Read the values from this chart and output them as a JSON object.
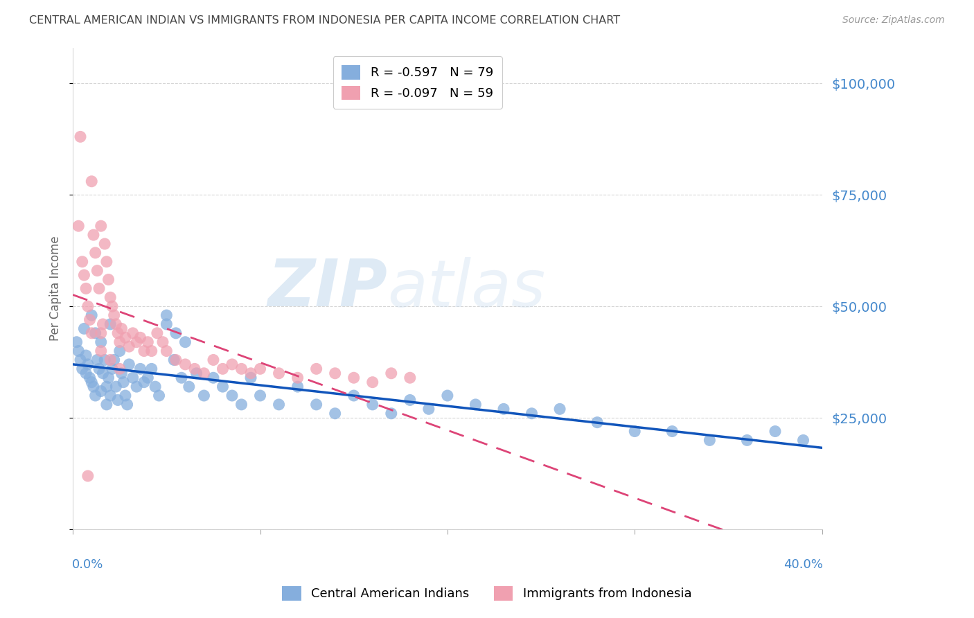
{
  "title": "CENTRAL AMERICAN INDIAN VS IMMIGRANTS FROM INDONESIA PER CAPITA INCOME CORRELATION CHART",
  "source": "Source: ZipAtlas.com",
  "ylabel": "Per Capita Income",
  "y_ticks": [
    0,
    25000,
    50000,
    75000,
    100000
  ],
  "y_tick_labels": [
    "",
    "$25,000",
    "$50,000",
    "$75,000",
    "$100,000"
  ],
  "xlim": [
    0.0,
    0.4
  ],
  "ylim": [
    0,
    108000
  ],
  "legend_label_blue": "R = -0.597   N = 79",
  "legend_label_pink": "R = -0.097   N = 59",
  "bottom_legend_blue": "Central American Indians",
  "bottom_legend_pink": "Immigrants from Indonesia",
  "watermark_zip": "ZIP",
  "watermark_atlas": "atlas",
  "blue_color": "#85AEDD",
  "pink_color": "#F0A0B0",
  "line_blue": "#1155BB",
  "line_pink": "#DD4477",
  "tick_color": "#4488CC",
  "title_color": "#444444",
  "grid_color": "#CCCCCC",
  "blue_points_x": [
    0.002,
    0.003,
    0.004,
    0.005,
    0.006,
    0.007,
    0.007,
    0.008,
    0.009,
    0.01,
    0.01,
    0.011,
    0.012,
    0.012,
    0.013,
    0.014,
    0.015,
    0.015,
    0.016,
    0.017,
    0.018,
    0.018,
    0.019,
    0.02,
    0.02,
    0.021,
    0.022,
    0.023,
    0.024,
    0.025,
    0.026,
    0.027,
    0.028,
    0.029,
    0.03,
    0.032,
    0.034,
    0.036,
    0.038,
    0.04,
    0.042,
    0.044,
    0.046,
    0.05,
    0.054,
    0.058,
    0.062,
    0.066,
    0.07,
    0.075,
    0.08,
    0.085,
    0.09,
    0.095,
    0.1,
    0.11,
    0.12,
    0.13,
    0.14,
    0.15,
    0.16,
    0.17,
    0.18,
    0.19,
    0.2,
    0.215,
    0.23,
    0.245,
    0.26,
    0.28,
    0.3,
    0.32,
    0.34,
    0.36,
    0.375,
    0.39,
    0.05,
    0.055,
    0.06
  ],
  "blue_points_y": [
    42000,
    40000,
    38000,
    36000,
    45000,
    39000,
    35000,
    37000,
    34000,
    48000,
    33000,
    32000,
    44000,
    30000,
    38000,
    36000,
    42000,
    31000,
    35000,
    38000,
    32000,
    28000,
    34000,
    46000,
    30000,
    36000,
    38000,
    32000,
    29000,
    40000,
    35000,
    33000,
    30000,
    28000,
    37000,
    34000,
    32000,
    36000,
    33000,
    34000,
    36000,
    32000,
    30000,
    48000,
    38000,
    34000,
    32000,
    35000,
    30000,
    34000,
    32000,
    30000,
    28000,
    34000,
    30000,
    28000,
    32000,
    28000,
    26000,
    30000,
    28000,
    26000,
    29000,
    27000,
    30000,
    28000,
    27000,
    26000,
    27000,
    24000,
    22000,
    22000,
    20000,
    20000,
    22000,
    20000,
    46000,
    44000,
    42000
  ],
  "pink_points_x": [
    0.003,
    0.004,
    0.005,
    0.006,
    0.007,
    0.008,
    0.009,
    0.01,
    0.01,
    0.011,
    0.012,
    0.013,
    0.014,
    0.015,
    0.015,
    0.016,
    0.017,
    0.018,
    0.019,
    0.02,
    0.021,
    0.022,
    0.023,
    0.024,
    0.025,
    0.026,
    0.028,
    0.03,
    0.032,
    0.034,
    0.036,
    0.038,
    0.04,
    0.042,
    0.045,
    0.048,
    0.05,
    0.055,
    0.06,
    0.065,
    0.07,
    0.075,
    0.08,
    0.085,
    0.09,
    0.095,
    0.1,
    0.11,
    0.12,
    0.13,
    0.14,
    0.15,
    0.16,
    0.17,
    0.18,
    0.015,
    0.02,
    0.025,
    0.008
  ],
  "pink_points_y": [
    68000,
    88000,
    60000,
    57000,
    54000,
    50000,
    47000,
    78000,
    44000,
    66000,
    62000,
    58000,
    54000,
    68000,
    44000,
    46000,
    64000,
    60000,
    56000,
    52000,
    50000,
    48000,
    46000,
    44000,
    42000,
    45000,
    43000,
    41000,
    44000,
    42000,
    43000,
    40000,
    42000,
    40000,
    44000,
    42000,
    40000,
    38000,
    37000,
    36000,
    35000,
    38000,
    36000,
    37000,
    36000,
    35000,
    36000,
    35000,
    34000,
    36000,
    35000,
    34000,
    33000,
    35000,
    34000,
    40000,
    38000,
    36000,
    12000
  ]
}
